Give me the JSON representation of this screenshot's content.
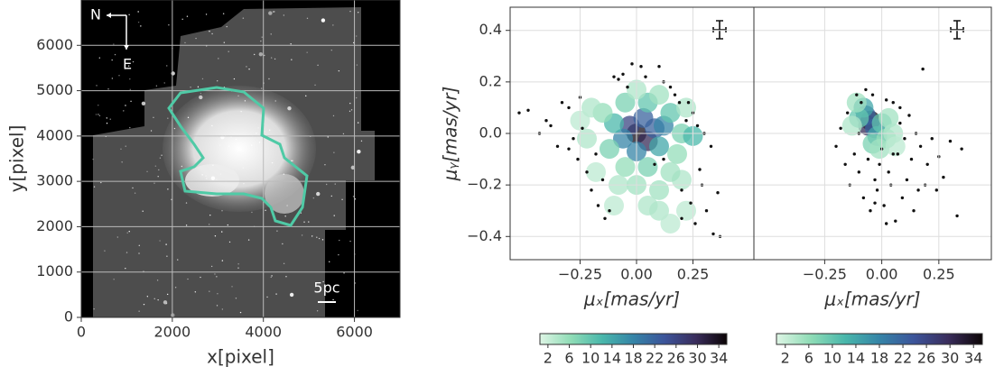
{
  "chart_data": [
    {
      "type": "image",
      "xlabel": "x[pixel]",
      "ylabel": "y[pixel]",
      "xlim": [
        0,
        7000
      ],
      "ylim": [
        0,
        7000
      ],
      "xticks": [
        0,
        2000,
        4000,
        6000
      ],
      "yticks": [
        0,
        1000,
        2000,
        3000,
        4000,
        5000,
        6000
      ],
      "grid": true,
      "contour_color": "#4fcaa6",
      "annotations": [
        "N",
        "E",
        "5pc"
      ]
    },
    {
      "type": "scatter",
      "xlabel": "μₓ[mas/yr]",
      "ylabel": "μᵧ[mas/yr]",
      "xlim": [
        -0.56,
        0.52
      ],
      "ylim": [
        -0.49,
        0.49
      ],
      "xticks": [
        {
          "value": -0.25,
          "label": "−0.25"
        },
        {
          "value": 0,
          "label": "0.00"
        },
        {
          "value": 0.25,
          "label": "0.25"
        }
      ],
      "yticks": [
        {
          "value": -0.4,
          "label": "−0.4"
        },
        {
          "value": -0.2,
          "label": "−0.2"
        },
        {
          "value": 0,
          "label": "0.0"
        },
        0.2,
        0.4
      ],
      "grid": true,
      "points": {
        "color": "#111111",
        "x": [
          -0.52,
          -0.48,
          -0.43,
          -0.4,
          -0.38,
          -0.35,
          -0.33,
          -0.3,
          -0.28,
          -0.26,
          -0.25,
          -0.22,
          -0.2,
          -0.18,
          -0.17,
          -0.15,
          -0.14,
          -0.12,
          -0.1,
          -0.08,
          -0.06,
          -0.04,
          -0.02,
          0.02,
          0.04,
          0.08,
          0.1,
          0.12,
          0.15,
          0.17,
          0.19,
          0.2,
          0.22,
          0.24,
          0.25,
          0.26,
          0.27,
          0.28,
          0.29,
          0.3,
          0.31,
          0.33,
          0.34,
          0.36,
          0.37,
          0.2,
          0.12,
          -0.3,
          -0.24,
          0.23
        ],
        "y": [
          0.08,
          0.09,
          0.0,
          0.05,
          0.03,
          -0.05,
          0.12,
          0.1,
          -0.02,
          -0.1,
          0.14,
          -0.15,
          -0.22,
          -0.08,
          -0.28,
          -0.18,
          -0.33,
          -0.3,
          0.22,
          0.21,
          0.23,
          0.18,
          0.27,
          0.26,
          0.22,
          -0.12,
          0.26,
          0.2,
          0.18,
          0.15,
          0.12,
          -0.22,
          0.05,
          -0.27,
          0.08,
          -0.35,
          0.03,
          -0.14,
          -0.2,
          0.0,
          -0.3,
          -0.05,
          -0.39,
          -0.23,
          -0.4,
          -0.33,
          -0.1,
          -0.06,
          0.02,
          0.12
        ]
      },
      "density": {
        "x": [
          0.0,
          0.05,
          -0.03,
          0.08,
          0.03,
          -0.06,
          0.12,
          0.0,
          0.1,
          -0.1,
          0.15,
          0.2,
          0.25,
          -0.12,
          -0.15,
          0.05,
          -0.05,
          0.1,
          -0.2,
          -0.22,
          0.18,
          0.05,
          -0.05,
          0.0,
          0.1,
          0.1,
          0.15,
          0.05,
          -0.08,
          0.2,
          -0.18,
          0.15,
          0.22,
          -0.25,
          0.0,
          0.22,
          -0.1
        ],
        "y": [
          0.0,
          -0.03,
          0.03,
          0.02,
          0.06,
          -0.02,
          0.03,
          -0.07,
          -0.05,
          0.04,
          0.08,
          0.0,
          -0.01,
          -0.06,
          0.08,
          0.12,
          0.12,
          0.15,
          0.1,
          -0.02,
          -0.08,
          -0.13,
          -0.13,
          -0.2,
          -0.22,
          -0.3,
          -0.35,
          -0.28,
          -0.2,
          -0.18,
          -0.15,
          -0.15,
          0.1,
          0.05,
          0.17,
          -0.3,
          -0.28
        ],
        "values": [
          34,
          30,
          26,
          22,
          22,
          18,
          18,
          18,
          14,
          12,
          10,
          8,
          12,
          8,
          6,
          10,
          8,
          5,
          4,
          4,
          6,
          8,
          6,
          5,
          5,
          4,
          3,
          4,
          4,
          4,
          3,
          5,
          4,
          3,
          4,
          3,
          3
        ]
      },
      "colormap": [
        "#def5e5",
        "#8fdcb6",
        "#49b7ab",
        "#3584a7",
        "#3c549a",
        "#3a2d5c",
        "#0b0405"
      ],
      "clim": [
        0.5,
        35.5
      ],
      "cticks": [
        2,
        6,
        10,
        14,
        18,
        22,
        26,
        30,
        34
      ]
    },
    {
      "type": "scatter",
      "xlabel": "μₓ[mas/yr]",
      "xlim": [
        -0.56,
        0.48
      ],
      "ylim": [
        -0.49,
        0.49
      ],
      "xticks": [
        {
          "value": -0.25,
          "label": "−0.25"
        },
        {
          "value": 0,
          "label": "0.00"
        },
        {
          "value": 0.25,
          "label": "0.25"
        }
      ],
      "yticks": [
        -0.4,
        -0.2,
        0,
        0.2,
        0.4
      ],
      "ytick_labels": false,
      "grid": true,
      "points": {
        "color": "#111111",
        "x": [
          -0.2,
          -0.18,
          -0.16,
          -0.15,
          -0.14,
          -0.12,
          -0.11,
          -0.1,
          -0.09,
          -0.08,
          -0.07,
          -0.06,
          -0.05,
          -0.04,
          -0.03,
          -0.02,
          -0.01,
          0.0,
          0.01,
          0.02,
          0.03,
          0.04,
          0.05,
          0.06,
          0.07,
          0.08,
          0.09,
          0.1,
          0.11,
          0.12,
          0.13,
          0.14,
          0.15,
          0.16,
          0.17,
          0.18,
          0.2,
          0.22,
          0.24,
          0.25,
          0.27,
          0.3,
          0.33,
          0.35,
          0.19,
          -0.03,
          0.05,
          0.08,
          -0.1,
          0.02
        ],
        "y": [
          -0.05,
          0.02,
          -0.12,
          0.08,
          -0.2,
          -0.08,
          0.15,
          -0.15,
          0.12,
          -0.25,
          0.17,
          -0.1,
          -0.3,
          0.15,
          -0.18,
          -0.22,
          -0.12,
          -0.06,
          -0.28,
          0.13,
          -0.15,
          -0.2,
          0.12,
          -0.34,
          -0.08,
          0.1,
          -0.25,
          -0.02,
          -0.18,
          0.07,
          -0.1,
          -0.3,
          0.0,
          -0.22,
          -0.05,
          0.25,
          -0.12,
          -0.02,
          -0.22,
          -0.09,
          -0.17,
          -0.03,
          -0.32,
          -0.06,
          -0.2,
          -0.27,
          -0.08,
          0.04,
          0.0,
          -0.35
        ]
      },
      "density": {
        "x": [
          -0.05,
          -0.06,
          -0.03,
          -0.07,
          -0.08,
          -0.02,
          -0.1,
          0.0,
          -0.04,
          0.02,
          -0.11,
          0.03,
          -0.01,
          0.05,
          -0.13,
          0.06
        ],
        "y": [
          0.05,
          0.03,
          0.02,
          0.07,
          0.1,
          -0.01,
          0.06,
          0.04,
          -0.04,
          -0.02,
          0.12,
          0.06,
          -0.06,
          0.0,
          0.03,
          -0.05
        ],
        "values": [
          34,
          30,
          22,
          22,
          14,
          14,
          10,
          10,
          8,
          6,
          5,
          5,
          5,
          4,
          4,
          3
        ]
      },
      "colormap": [
        "#def5e5",
        "#8fdcb6",
        "#49b7ab",
        "#3584a7",
        "#3c549a",
        "#3a2d5c",
        "#0b0405"
      ],
      "clim": [
        0.5,
        35.5
      ],
      "cticks": [
        2,
        6,
        10,
        14,
        18,
        22,
        26,
        30,
        34
      ]
    }
  ]
}
